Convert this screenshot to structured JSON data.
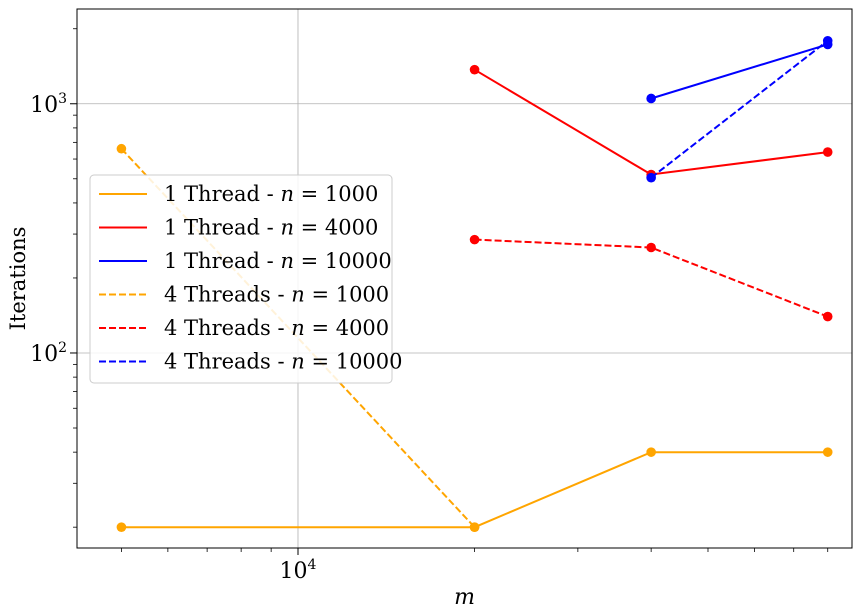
{
  "chart_data": {
    "type": "line",
    "xlabel": "m",
    "ylabel": "Iterations",
    "xscale": "log",
    "yscale": "log",
    "xlim": [
      4200,
      88000
    ],
    "ylim": [
      16.5,
      2400
    ],
    "grid": true,
    "legend_position": "center-left",
    "x_ticks": [
      {
        "value": 10000,
        "base": "10",
        "exp": "4"
      }
    ],
    "y_ticks": [
      {
        "value": 100,
        "base": "10",
        "exp": "2"
      },
      {
        "value": 1000,
        "base": "10",
        "exp": "3"
      }
    ],
    "series": [
      {
        "name_prefix": "1 Thread - ",
        "n_value": "1000",
        "color": "#ffa500",
        "dash": "solid",
        "points": [
          [
            5000,
            20
          ],
          [
            20000,
            20
          ],
          [
            40000,
            40
          ],
          [
            80000,
            40
          ]
        ]
      },
      {
        "name_prefix": "1 Thread - ",
        "n_value": "4000",
        "color": "#ff0000",
        "dash": "solid",
        "points": [
          [
            20000,
            1370
          ],
          [
            40000,
            520
          ],
          [
            80000,
            640
          ]
        ]
      },
      {
        "name_prefix": "1 Thread - ",
        "n_value": "10000",
        "color": "#0000ff",
        "dash": "solid",
        "points": [
          [
            40000,
            1050
          ],
          [
            80000,
            1730
          ]
        ]
      },
      {
        "name_prefix": "4 Threads - ",
        "n_value": "1000",
        "color": "#ffa500",
        "dash": "dashed",
        "points": [
          [
            5000,
            660
          ],
          [
            20000,
            20
          ]
        ]
      },
      {
        "name_prefix": "4 Threads - ",
        "n_value": "4000",
        "color": "#ff0000",
        "dash": "dashed",
        "points": [
          [
            20000,
            285
          ],
          [
            40000,
            265
          ],
          [
            80000,
            140
          ]
        ]
      },
      {
        "name_prefix": "4 Threads - ",
        "n_value": "10000",
        "color": "#0000ff",
        "dash": "dashed",
        "points": [
          [
            40000,
            505
          ],
          [
            80000,
            1790
          ]
        ]
      }
    ]
  }
}
